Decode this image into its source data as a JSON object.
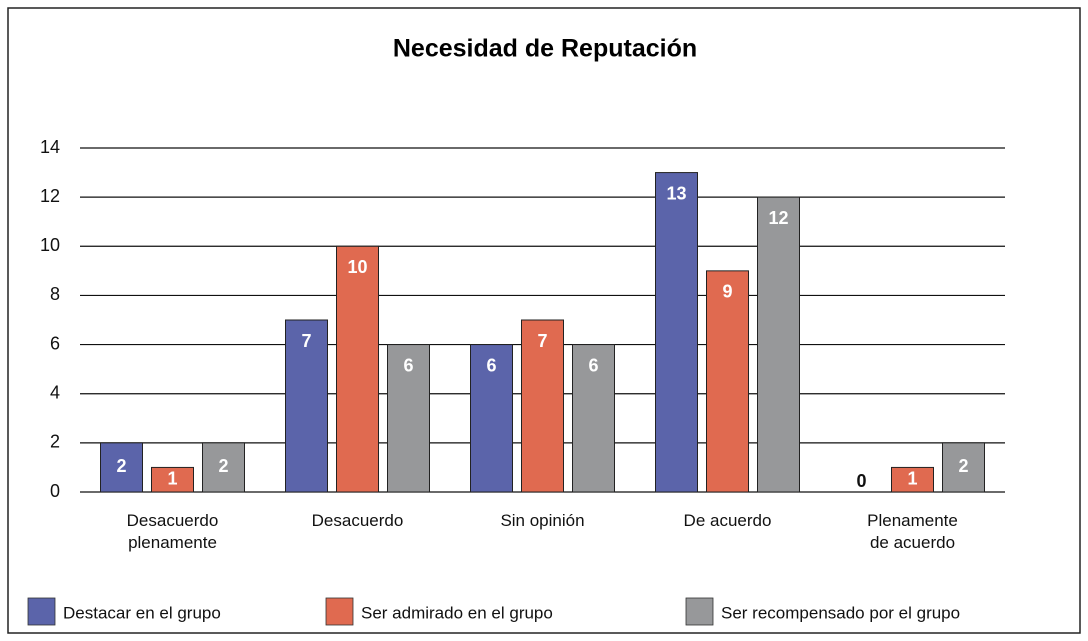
{
  "chart_data": {
    "type": "bar",
    "title": "Necesidad de Reputación",
    "categories": [
      "Desacuerdo\nplenamente",
      "Desacuerdo",
      "Sin opinión",
      "De acuerdo",
      "Plenamente\nde acuerdo"
    ],
    "series": [
      {
        "name": "Destacar en el grupo",
        "color": "#5b64aa",
        "values": [
          2,
          7,
          6,
          13,
          0
        ]
      },
      {
        "name": "Ser admirado en el grupo",
        "color": "#e06a50",
        "values": [
          1,
          10,
          7,
          9,
          1
        ]
      },
      {
        "name": "Ser recompensado por el grupo",
        "color": "#97989a",
        "values": [
          2,
          6,
          6,
          12,
          2
        ]
      }
    ],
    "ylim": [
      0,
      14
    ],
    "yticks": [
      0,
      2,
      4,
      6,
      8,
      10,
      12,
      14
    ],
    "grid": true,
    "legend": "bottom"
  }
}
